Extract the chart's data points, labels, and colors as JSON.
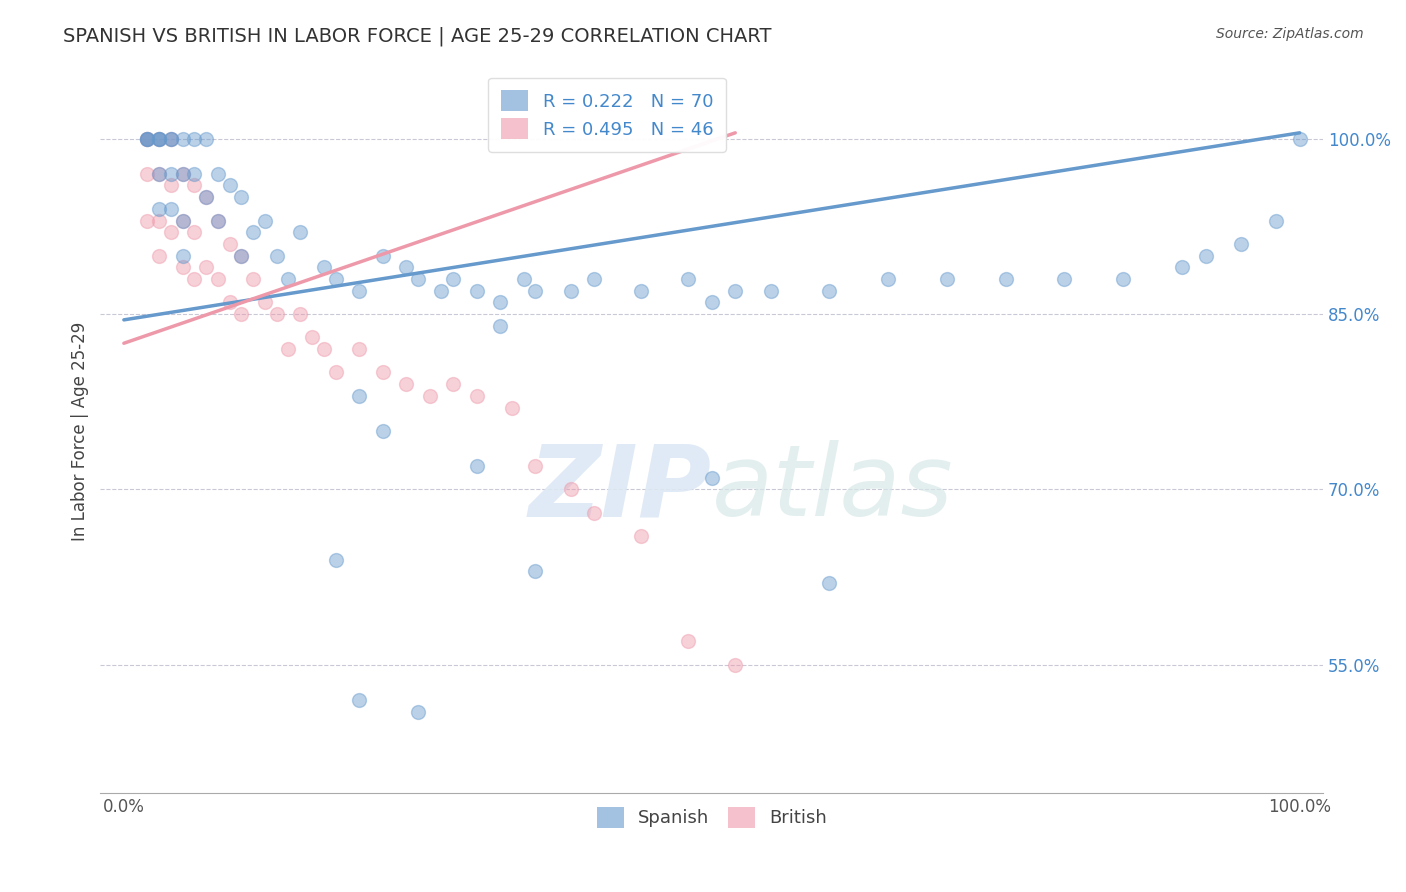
{
  "title": "SPANISH VS BRITISH IN LABOR FORCE | AGE 25-29 CORRELATION CHART",
  "source": "Source: ZipAtlas.com",
  "ylabel": "In Labor Force | Age 25-29",
  "background_color": "#ffffff",
  "spanish_color": "#6699cc",
  "british_color": "#ee99aa",
  "spanish_R": 0.222,
  "spanish_N": 70,
  "british_R": 0.495,
  "british_N": 46,
  "legend_label_spanish": "Spanish",
  "legend_label_british": "British",
  "marker_size": 100,
  "marker_alpha": 0.45,
  "grid_color": "#bbbbcc",
  "ytick_color": "#4488cc",
  "trend_spanish_x0": 0.0,
  "trend_spanish_y0": 0.845,
  "trend_spanish_x1": 1.0,
  "trend_spanish_y1": 1.005,
  "trend_british_x0": 0.0,
  "trend_british_y0": 0.825,
  "trend_british_x1": 0.52,
  "trend_british_y1": 1.005,
  "xlim": [
    -0.02,
    1.02
  ],
  "ylim": [
    0.44,
    1.06
  ],
  "yticks": [
    0.55,
    0.7,
    0.85,
    1.0
  ],
  "ytick_labels": [
    "55.0%",
    "70.0%",
    "85.0%",
    "100.0%"
  ],
  "xticks": [
    0.0,
    1.0
  ],
  "xtick_labels": [
    "0.0%",
    "100.0%"
  ],
  "spanish_x": [
    0.02,
    0.02,
    0.02,
    0.03,
    0.03,
    0.03,
    0.03,
    0.03,
    0.04,
    0.04,
    0.04,
    0.04,
    0.05,
    0.05,
    0.05,
    0.05,
    0.06,
    0.06,
    0.07,
    0.07,
    0.08,
    0.08,
    0.09,
    0.1,
    0.1,
    0.11,
    0.12,
    0.13,
    0.14,
    0.15,
    0.17,
    0.18,
    0.2,
    0.22,
    0.24,
    0.25,
    0.27,
    0.28,
    0.3,
    0.32,
    0.34,
    0.35,
    0.38,
    0.4,
    0.44,
    0.48,
    0.5,
    0.52,
    0.55,
    0.6,
    0.65,
    0.7,
    0.75,
    0.8,
    0.85,
    0.9,
    0.92,
    0.95,
    0.98,
    1.0,
    0.2,
    0.22,
    0.3,
    0.35,
    0.5,
    0.6,
    0.2,
    0.25,
    0.18,
    0.32
  ],
  "spanish_y": [
    1.0,
    1.0,
    1.0,
    1.0,
    1.0,
    1.0,
    0.97,
    0.94,
    1.0,
    1.0,
    0.97,
    0.94,
    1.0,
    0.97,
    0.93,
    0.9,
    1.0,
    0.97,
    1.0,
    0.95,
    0.97,
    0.93,
    0.96,
    0.95,
    0.9,
    0.92,
    0.93,
    0.9,
    0.88,
    0.92,
    0.89,
    0.88,
    0.87,
    0.9,
    0.89,
    0.88,
    0.87,
    0.88,
    0.87,
    0.86,
    0.88,
    0.87,
    0.87,
    0.88,
    0.87,
    0.88,
    0.86,
    0.87,
    0.87,
    0.87,
    0.88,
    0.88,
    0.88,
    0.88,
    0.88,
    0.89,
    0.9,
    0.91,
    0.93,
    1.0,
    0.78,
    0.75,
    0.72,
    0.63,
    0.71,
    0.62,
    0.52,
    0.51,
    0.64,
    0.84
  ],
  "british_x": [
    0.02,
    0.02,
    0.02,
    0.02,
    0.03,
    0.03,
    0.03,
    0.03,
    0.04,
    0.04,
    0.04,
    0.05,
    0.05,
    0.05,
    0.06,
    0.06,
    0.06,
    0.07,
    0.07,
    0.08,
    0.08,
    0.09,
    0.09,
    0.1,
    0.1,
    0.11,
    0.12,
    0.13,
    0.14,
    0.15,
    0.16,
    0.17,
    0.18,
    0.2,
    0.22,
    0.24,
    0.26,
    0.28,
    0.3,
    0.33,
    0.35,
    0.38,
    0.4,
    0.44,
    0.48,
    0.52
  ],
  "british_y": [
    1.0,
    1.0,
    0.97,
    0.93,
    1.0,
    0.97,
    0.93,
    0.9,
    1.0,
    0.96,
    0.92,
    0.97,
    0.93,
    0.89,
    0.96,
    0.92,
    0.88,
    0.95,
    0.89,
    0.93,
    0.88,
    0.91,
    0.86,
    0.9,
    0.85,
    0.88,
    0.86,
    0.85,
    0.82,
    0.85,
    0.83,
    0.82,
    0.8,
    0.82,
    0.8,
    0.79,
    0.78,
    0.79,
    0.78,
    0.77,
    0.72,
    0.7,
    0.68,
    0.66,
    0.57,
    0.55
  ]
}
